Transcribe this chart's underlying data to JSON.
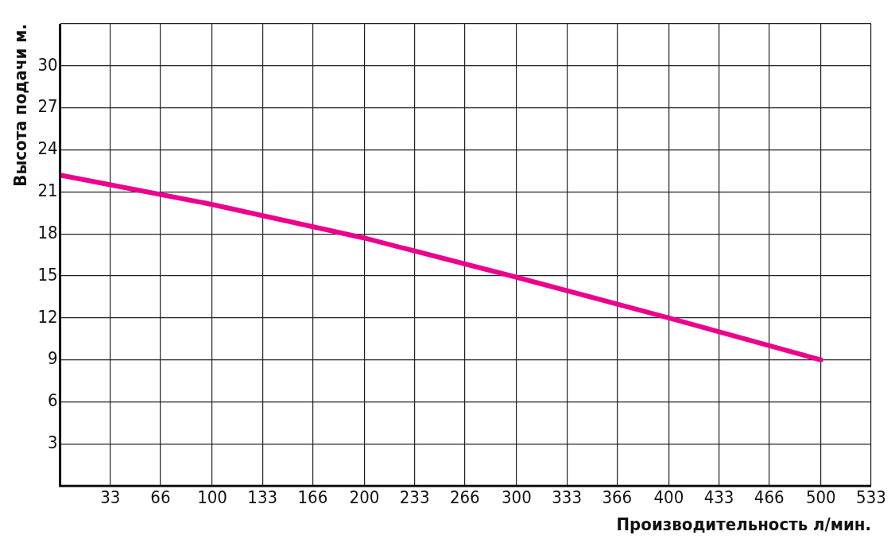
{
  "chart_data": {
    "type": "line",
    "xlabel": "Производительность л/мин.",
    "ylabel": "Высота подачи м.",
    "x": [
      0,
      100,
      200,
      300,
      400,
      500
    ],
    "series": [
      {
        "color": "#ec008c",
        "values": [
          22.2,
          20.1,
          17.7,
          14.9,
          12.0,
          9
        ]
      }
    ],
    "xlim": [
      0,
      533
    ],
    "ylim": [
      0,
      33
    ],
    "xticks": [
      33,
      66,
      100,
      133,
      166,
      200,
      233,
      266,
      300,
      333,
      366,
      400,
      433,
      466,
      500,
      533
    ],
    "yticks": [
      3,
      6,
      9,
      12,
      15,
      18,
      21,
      24,
      27,
      30,
      {
        "value": 33,
        "label": null
      }
    ],
    "grid": true,
    "legend": false,
    "marker": "none",
    "line_style": "solid"
  }
}
